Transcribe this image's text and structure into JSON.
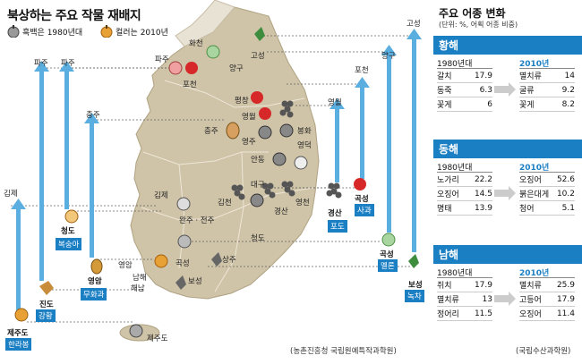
{
  "title": "북상하는 주요 작물 재배지",
  "legend": {
    "bw": "흑백은 1980년대",
    "color": "컬러는 2010년"
  },
  "places": {
    "hwacheon": "화천",
    "paju": "파주",
    "pocheon": "포천",
    "yanggu": "양구",
    "goseong_top": "고성",
    "pyeongchang": "평창",
    "yeongwol": "영월",
    "chungju": "충주",
    "bonghwa": "봉화",
    "yeongju": "영주",
    "andong": "안동",
    "yeongdeok": "영덕",
    "daegu": "대구",
    "gimje": "김제",
    "wanju": "완주 · 전주",
    "gimcheon": "김천",
    "yeongcheon": "영천",
    "cheongdo": "청도",
    "yeongam": "영암",
    "gokseong": "곡성",
    "namhae": "남해",
    "haenam": "해남",
    "boseong_map": "보성",
    "jejudo_map": "제주도",
    "gyeongsan_map": "경산",
    "sangju": "상주"
  },
  "left_labels": {
    "gimje": "김제",
    "paju1": "파주",
    "paju2": "파주",
    "chungju": "충주",
    "yeongwol": "영월",
    "pocheon": "포천",
    "yanggu": "양구",
    "goseong": "고성"
  },
  "crops": [
    {
      "region": "제주도",
      "crop": "한라봉"
    },
    {
      "region": "진도",
      "crop": "강황"
    },
    {
      "region": "청도",
      "crop": "복숭아"
    },
    {
      "region": "영암",
      "crop": "무화과"
    },
    {
      "region": "경산",
      "crop": "포도"
    },
    {
      "region": "곡성",
      "crop": "사과"
    },
    {
      "region": "곡성",
      "crop": "멜론"
    },
    {
      "region": "보성",
      "crop": "녹차"
    }
  ],
  "source_left": "(농촌진흥청 국립원예특작과학원)",
  "right_title": "주요 어종 변화",
  "right_sub": "(단위: %, 어획 어종 비중)",
  "seas": [
    {
      "name": "황해",
      "y1980": "1980년대",
      "y2010": "2010년",
      "old": [
        {
          "fish": "갈치",
          "pct": "17.9"
        },
        {
          "fish": "동죽",
          "pct": "6.3"
        },
        {
          "fish": "꽃게",
          "pct": "6"
        }
      ],
      "new": [
        {
          "fish": "멸치류",
          "pct": "14"
        },
        {
          "fish": "굴류",
          "pct": "9.2"
        },
        {
          "fish": "꽃게",
          "pct": "8.2"
        }
      ]
    },
    {
      "name": "동해",
      "y1980": "1980년대",
      "y2010": "2010년",
      "old": [
        {
          "fish": "노가리",
          "pct": "22.2"
        },
        {
          "fish": "오징어",
          "pct": "14.5"
        },
        {
          "fish": "명태",
          "pct": "13.9"
        }
      ],
      "new": [
        {
          "fish": "오징어",
          "pct": "52.6"
        },
        {
          "fish": "붉은대게",
          "pct": "10.2"
        },
        {
          "fish": "청어",
          "pct": "5.1"
        }
      ]
    },
    {
      "name": "남해",
      "y1980": "1980년대",
      "y2010": "2010년",
      "old": [
        {
          "fish": "쥐치",
          "pct": "17.9"
        },
        {
          "fish": "멸치류",
          "pct": "13"
        },
        {
          "fish": "정어리",
          "pct": "11.5"
        }
      ],
      "new": [
        {
          "fish": "멸치류",
          "pct": "25.9"
        },
        {
          "fish": "고등어",
          "pct": "17.9"
        },
        {
          "fish": "오징어",
          "pct": "11.4"
        }
      ]
    }
  ],
  "source_right": "(국립수산과학원)",
  "colors": {
    "accent": "#1b7fc4",
    "land": "#cfc3a8",
    "arrow": "#5aaee0"
  }
}
